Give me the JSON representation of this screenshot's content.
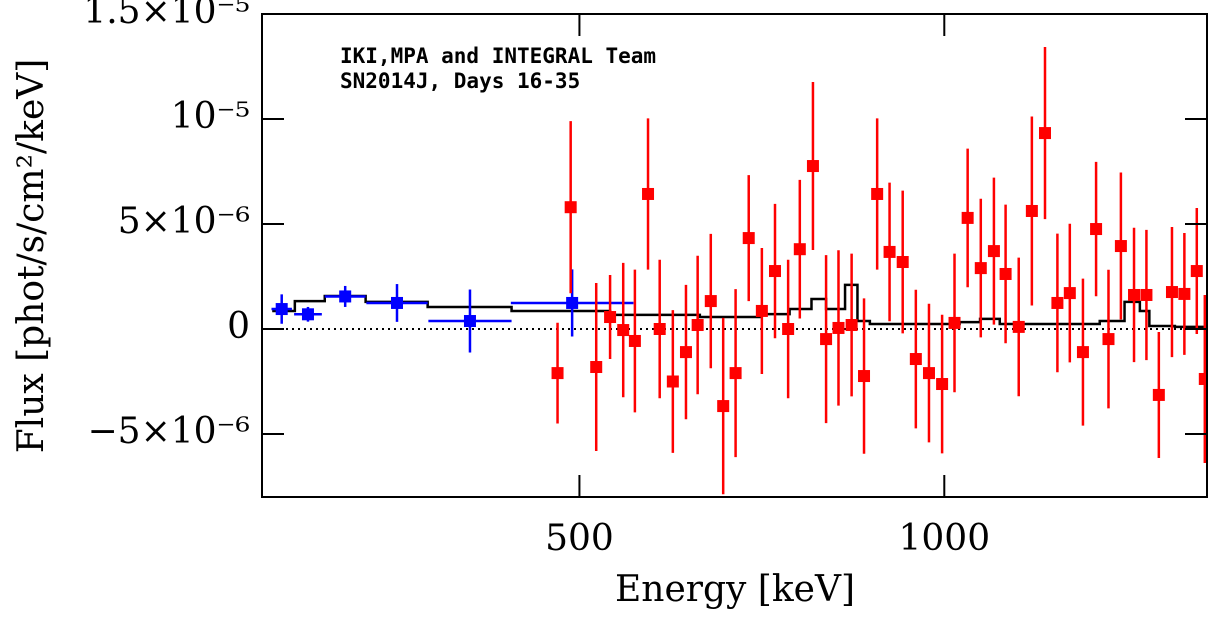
{
  "chart_data": {
    "type": "errorbar",
    "xlabel": "Energy [keV]",
    "ylabel": "Flux [phot/s/cm²/keV]",
    "annotations": [
      "IKI,MPA and INTEGRAL Team",
      "SN2014J, Days 16-35"
    ],
    "xlim": [
      65,
      1360
    ],
    "ylim": [
      -8e-06,
      1.5e-05
    ],
    "xticks": [
      500,
      1000
    ],
    "yticks": [
      {
        "value": -5e-06,
        "label": "−5×10⁻⁶"
      },
      0,
      {
        "value": 5e-06,
        "label": "5×10⁻⁶"
      },
      {
        "value": 1e-05,
        "label": "10⁻⁵"
      },
      {
        "value": 1.5e-05,
        "label": "1.5×10⁻⁵"
      }
    ],
    "hline": 0,
    "series": [
      {
        "style": "step",
        "color": "#000000",
        "x": [
          79,
          110,
          151,
          207,
          292,
          407,
          542,
          665,
          747,
          788,
          818,
          838,
          864,
          881,
          898,
          1021,
          1049,
          1076,
          1213,
          1247,
          1268,
          1281,
          1316,
          1360
        ],
        "values": [
          8.6e-07,
          1.33e-06,
          1.57e-06,
          1.29e-06,
          1.05e-06,
          8.6e-07,
          6.7e-07,
          5.7e-07,
          7.1e-07,
          9.5e-07,
          1.43e-06,
          9.5e-07,
          2.1e-06,
          3.8e-07,
          2.4e-07,
          3.3e-07,
          4.8e-07,
          2.4e-07,
          3.8e-07,
          1.29e-06,
          8.6e-07,
          1.4e-07,
          1e-07,
          1e-07
        ]
      },
      {
        "style": "points",
        "color": "#0000ff",
        "x": [
          92,
          128,
          179,
          250,
          350,
          490
        ],
        "xerr": [
          14,
          19,
          28,
          42,
          57,
          84
        ],
        "values": [
          9.5e-07,
          7e-07,
          1.55e-06,
          1.24e-06,
          3.8e-07,
          1.24e-06
        ],
        "errors": [
          7e-07,
          3.5e-07,
          5e-07,
          9e-07,
          1.5e-06,
          1.6e-06
        ]
      },
      {
        "style": "points",
        "color": "#ff0000",
        "x": [
          470,
          488,
          523,
          542,
          560,
          576,
          594,
          610,
          628,
          646,
          662,
          680,
          697,
          714,
          732,
          750,
          768,
          786,
          802,
          820,
          838,
          855,
          873,
          890,
          908,
          925,
          943,
          961,
          979,
          997,
          1014,
          1032,
          1050,
          1068,
          1084,
          1102,
          1120,
          1138,
          1155,
          1172,
          1190,
          1208,
          1225,
          1242,
          1260,
          1277,
          1294,
          1312,
          1329,
          1346,
          1357
        ],
        "values": [
          -2.1e-06,
          5.8e-06,
          -1.81e-06,
          5.7e-07,
          -5e-08,
          -5.7e-07,
          6.43e-06,
          0,
          -2.5e-06,
          -1.1e-06,
          1.9e-07,
          1.33e-06,
          -3.67e-06,
          -2.1e-06,
          4.33e-06,
          8.6e-07,
          2.76e-06,
          0,
          3.8e-06,
          7.76e-06,
          -4.8e-07,
          5e-08,
          1.9e-07,
          -2.24e-06,
          6.43e-06,
          3.67e-06,
          3.19e-06,
          -1.43e-06,
          -2.1e-06,
          -2.62e-06,
          2.9e-07,
          5.29e-06,
          2.9e-06,
          3.71e-06,
          2.62e-06,
          1e-07,
          5.62e-06,
          9.33e-06,
          1.24e-06,
          1.71e-06,
          -1.1e-06,
          4.76e-06,
          -4.8e-07,
          3.95e-06,
          1.62e-06,
          1.62e-06,
          -3.14e-06,
          1.76e-06,
          1.67e-06,
          2.76e-06,
          -2.38e-06
        ],
        "errors": [
          2.4e-06,
          4.1e-06,
          4e-06,
          2e-06,
          3.2e-06,
          3.4e-06,
          3.6e-06,
          3.3e-06,
          3.4e-06,
          3.2e-06,
          3.3e-06,
          3.2e-06,
          4.2e-06,
          4e-06,
          3e-06,
          3e-06,
          3.2e-06,
          3.3e-06,
          3.3e-06,
          4e-06,
          4e-06,
          3.7e-06,
          3.4e-06,
          3.7e-06,
          3.6e-06,
          3.3e-06,
          3.4e-06,
          3.3e-06,
          3.3e-06,
          3.3e-06,
          3.3e-06,
          3.3e-06,
          3.3e-06,
          3.5e-06,
          3.3e-06,
          3.3e-06,
          4.5e-06,
          4.1e-06,
          3.3e-06,
          3.3e-06,
          3.5e-06,
          3.2e-06,
          3.3e-06,
          3.5e-06,
          3.2e-06,
          3.1e-06,
          3e-06,
          3.1e-06,
          2.9e-06,
          3e-06,
          4e-06
        ]
      }
    ]
  }
}
